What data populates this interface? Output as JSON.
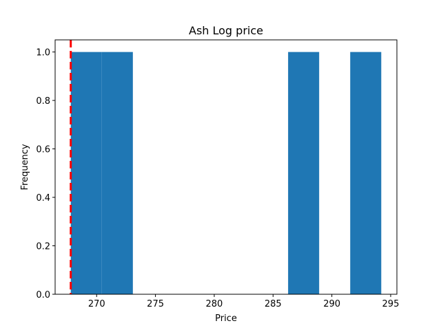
{
  "chart_data": {
    "type": "bar",
    "title": "Ash Log price",
    "xlabel": "Price",
    "ylabel": "Frequency",
    "bins": [
      {
        "x0": 267.8,
        "x1": 270.44,
        "count": 1
      },
      {
        "x0": 270.44,
        "x1": 273.08,
        "count": 1
      },
      {
        "x0": 273.08,
        "x1": 275.72,
        "count": 0
      },
      {
        "x0": 275.72,
        "x1": 278.36,
        "count": 0
      },
      {
        "x0": 278.36,
        "x1": 281.0,
        "count": 0
      },
      {
        "x0": 281.0,
        "x1": 283.64,
        "count": 0
      },
      {
        "x0": 283.64,
        "x1": 286.28,
        "count": 0
      },
      {
        "x0": 286.28,
        "x1": 288.92,
        "count": 1
      },
      {
        "x0": 288.92,
        "x1": 291.56,
        "count": 0
      },
      {
        "x0": 291.56,
        "x1": 294.2,
        "count": 1
      }
    ],
    "reference_line": {
      "x": 267.8,
      "color": "#ff0000",
      "style": "dashed"
    },
    "xlim": [
      266.47,
      295.53
    ],
    "ylim": [
      0,
      1.05
    ],
    "xticks": [
      270,
      275,
      280,
      285,
      290,
      295
    ],
    "yticks": [
      0.0,
      0.2,
      0.4,
      0.6,
      0.8,
      1.0
    ],
    "ytick_labels": [
      "0.0",
      "0.2",
      "0.4",
      "0.6",
      "0.8",
      "1.0"
    ],
    "bar_color": "#1f77b4",
    "grid": false,
    "legend": false
  }
}
